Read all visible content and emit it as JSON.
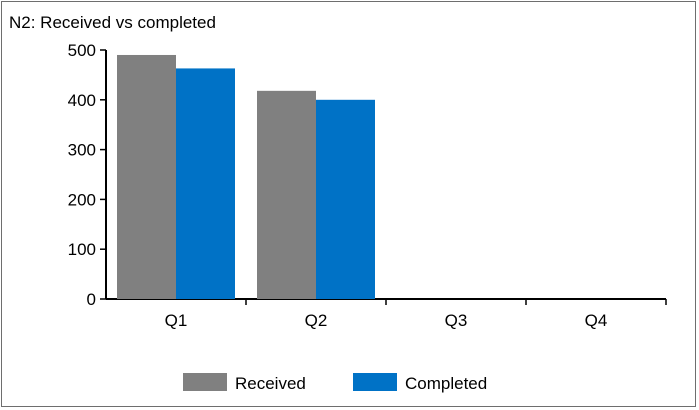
{
  "chart_data": {
    "type": "bar",
    "title": "N2: Received vs completed",
    "categories": [
      "Q1",
      "Q2",
      "Q3",
      "Q4"
    ],
    "series": [
      {
        "name": "Received",
        "values": [
          490,
          418,
          null,
          null
        ],
        "color": "#808080"
      },
      {
        "name": "Completed",
        "values": [
          463,
          400,
          null,
          null
        ],
        "color": "#0072C6"
      }
    ],
    "ylim": [
      0,
      500
    ],
    "yticks": [
      "0",
      "100",
      "200",
      "300",
      "400",
      "500"
    ],
    "grid": false,
    "legend": "bottom-center"
  }
}
